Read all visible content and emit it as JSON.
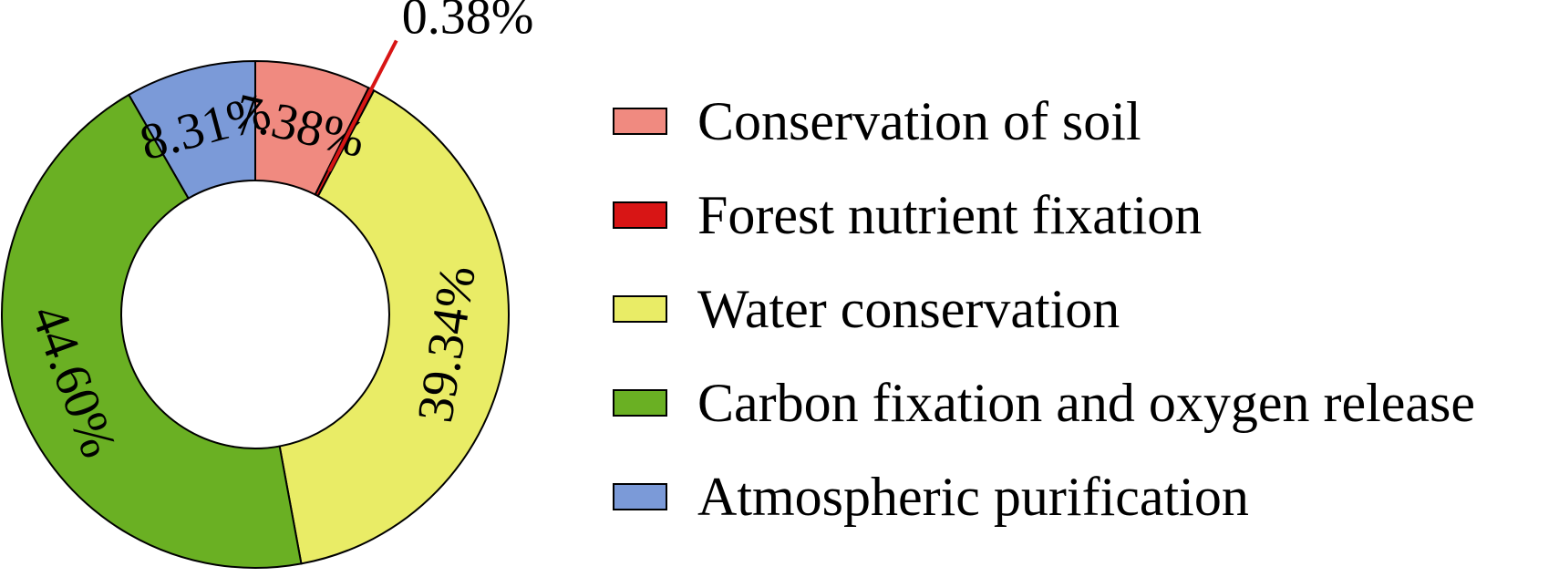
{
  "chart_data": {
    "type": "pie",
    "variant": "donut",
    "title": "",
    "categories": [
      "Conservation of soil",
      "Forest nutrient fixation",
      "Water conservation",
      "Carbon fixation and oxygen release",
      "Atmospheric purification"
    ],
    "values": [
      7.38,
      0.38,
      39.34,
      44.6,
      8.31
    ],
    "value_labels": [
      "7.38%",
      "0.38%",
      "39.34%",
      "44.60%",
      "8.31%"
    ],
    "colors": [
      "#f08a80",
      "#d81515",
      "#e9ec66",
      "#6ab023",
      "#7b9ad8"
    ],
    "start_angle": "12 o'clock",
    "direction": "clockwise",
    "legend": "right"
  }
}
